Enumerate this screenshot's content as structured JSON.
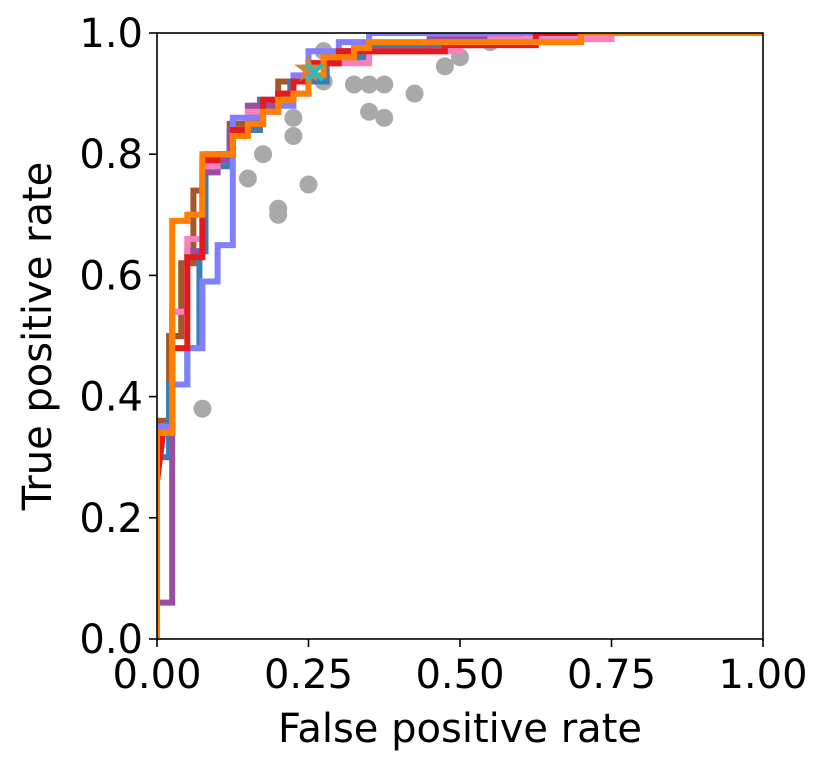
{
  "chart_data": {
    "type": "line",
    "title": "",
    "xlabel": "False positive rate",
    "ylabel": "True positive rate",
    "xlim": [
      0,
      1
    ],
    "ylim": [
      0,
      1
    ],
    "xticks": [
      0,
      0.25,
      0.5,
      0.75,
      1
    ],
    "yticks": [
      0,
      0.2,
      0.4,
      0.6,
      0.8,
      1
    ],
    "xtick_labels": [
      "0.00",
      "0.25",
      "0.50",
      "0.75",
      "1.00"
    ],
    "ytick_labels": [
      "0.0",
      "0.2",
      "0.4",
      "0.6",
      "0.8",
      "1.0"
    ],
    "grid": false,
    "series": [
      {
        "name": "brown-curve",
        "color": "#a65628",
        "points": [
          [
            0,
            0
          ],
          [
            0,
            0.36
          ],
          [
            0.02,
            0.36
          ],
          [
            0.02,
            0.5
          ],
          [
            0.04,
            0.5
          ],
          [
            0.04,
            0.62
          ],
          [
            0.06,
            0.62
          ],
          [
            0.06,
            0.74
          ],
          [
            0.08,
            0.74
          ],
          [
            0.08,
            0.8
          ],
          [
            0.12,
            0.8
          ],
          [
            0.12,
            0.85
          ],
          [
            0.16,
            0.85
          ],
          [
            0.16,
            0.88
          ],
          [
            0.2,
            0.88
          ],
          [
            0.2,
            0.92
          ],
          [
            0.25,
            0.92
          ],
          [
            0.25,
            0.95
          ],
          [
            0.3,
            0.95
          ],
          [
            0.3,
            0.97
          ],
          [
            0.4,
            0.97
          ],
          [
            0.4,
            0.98
          ],
          [
            0.55,
            0.98
          ],
          [
            0.55,
            1
          ],
          [
            1,
            1
          ]
        ]
      },
      {
        "name": "steel-blue-curve",
        "color": "#377eb8",
        "points": [
          [
            0,
            0
          ],
          [
            0,
            0.3
          ],
          [
            0.02,
            0.3
          ],
          [
            0.02,
            0.42
          ],
          [
            0.05,
            0.42
          ],
          [
            0.05,
            0.48
          ],
          [
            0.07,
            0.48
          ],
          [
            0.07,
            0.64
          ],
          [
            0.08,
            0.64
          ],
          [
            0.08,
            0.78
          ],
          [
            0.12,
            0.78
          ],
          [
            0.12,
            0.84
          ],
          [
            0.17,
            0.84
          ],
          [
            0.17,
            0.89
          ],
          [
            0.22,
            0.89
          ],
          [
            0.22,
            0.92
          ],
          [
            0.28,
            0.92
          ],
          [
            0.28,
            0.96
          ],
          [
            0.35,
            0.96
          ],
          [
            0.35,
            0.98
          ],
          [
            0.55,
            0.98
          ],
          [
            0.55,
            1
          ],
          [
            1,
            1
          ]
        ]
      },
      {
        "name": "purple-curve",
        "color": "#984ea3",
        "points": [
          [
            0,
            0
          ],
          [
            0,
            0.06
          ],
          [
            0.025,
            0.06
          ],
          [
            0.025,
            0.54
          ],
          [
            0.05,
            0.54
          ],
          [
            0.05,
            0.64
          ],
          [
            0.075,
            0.64
          ],
          [
            0.075,
            0.77
          ],
          [
            0.1,
            0.77
          ],
          [
            0.1,
            0.79
          ],
          [
            0.12,
            0.79
          ],
          [
            0.12,
            0.84
          ],
          [
            0.15,
            0.84
          ],
          [
            0.15,
            0.88
          ],
          [
            0.2,
            0.88
          ],
          [
            0.2,
            0.9
          ],
          [
            0.25,
            0.9
          ],
          [
            0.25,
            0.95
          ],
          [
            0.3,
            0.95
          ],
          [
            0.3,
            0.97
          ],
          [
            0.45,
            0.97
          ],
          [
            0.45,
            0.99
          ],
          [
            0.6,
            0.99
          ],
          [
            0.6,
            1
          ],
          [
            1,
            1
          ]
        ]
      },
      {
        "name": "pink-curve",
        "color": "#f781bf",
        "points": [
          [
            0,
            0
          ],
          [
            0,
            0.35
          ],
          [
            0.025,
            0.35
          ],
          [
            0.025,
            0.54
          ],
          [
            0.05,
            0.54
          ],
          [
            0.05,
            0.66
          ],
          [
            0.075,
            0.66
          ],
          [
            0.075,
            0.78
          ],
          [
            0.1,
            0.78
          ],
          [
            0.1,
            0.8
          ],
          [
            0.125,
            0.8
          ],
          [
            0.125,
            0.84
          ],
          [
            0.15,
            0.84
          ],
          [
            0.15,
            0.87
          ],
          [
            0.2,
            0.87
          ],
          [
            0.2,
            0.9
          ],
          [
            0.25,
            0.9
          ],
          [
            0.25,
            0.95
          ],
          [
            0.35,
            0.95
          ],
          [
            0.35,
            0.97
          ],
          [
            0.5,
            0.97
          ],
          [
            0.5,
            0.98
          ],
          [
            0.55,
            0.98
          ],
          [
            0.55,
            0.99
          ],
          [
            0.75,
            0.99
          ],
          [
            0.75,
            1
          ],
          [
            1,
            1
          ]
        ]
      },
      {
        "name": "light-blue-curve",
        "color": "#8080ff",
        "points": [
          [
            0,
            0
          ],
          [
            0,
            0.35
          ],
          [
            0.025,
            0.35
          ],
          [
            0.025,
            0.42
          ],
          [
            0.05,
            0.42
          ],
          [
            0.05,
            0.48
          ],
          [
            0.075,
            0.48
          ],
          [
            0.075,
            0.59
          ],
          [
            0.1,
            0.59
          ],
          [
            0.1,
            0.65
          ],
          [
            0.125,
            0.65
          ],
          [
            0.125,
            0.86
          ],
          [
            0.175,
            0.86
          ],
          [
            0.175,
            0.87
          ],
          [
            0.2,
            0.87
          ],
          [
            0.2,
            0.88
          ],
          [
            0.225,
            0.88
          ],
          [
            0.225,
            0.93
          ],
          [
            0.25,
            0.93
          ],
          [
            0.25,
            0.97
          ],
          [
            0.3,
            0.97
          ],
          [
            0.3,
            0.985
          ],
          [
            0.35,
            0.985
          ],
          [
            0.35,
            1
          ],
          [
            1,
            1
          ]
        ]
      },
      {
        "name": "red-curve",
        "color": "#e41a1c",
        "points": [
          [
            0,
            0.26
          ],
          [
            0.01,
            0.34
          ],
          [
            0.025,
            0.34
          ],
          [
            0.025,
            0.48
          ],
          [
            0.05,
            0.48
          ],
          [
            0.05,
            0.63
          ],
          [
            0.075,
            0.63
          ],
          [
            0.075,
            0.79
          ],
          [
            0.1,
            0.79
          ],
          [
            0.1,
            0.8
          ],
          [
            0.125,
            0.8
          ],
          [
            0.125,
            0.84
          ],
          [
            0.15,
            0.84
          ],
          [
            0.15,
            0.85
          ],
          [
            0.175,
            0.85
          ],
          [
            0.175,
            0.89
          ],
          [
            0.2,
            0.89
          ],
          [
            0.2,
            0.9
          ],
          [
            0.225,
            0.9
          ],
          [
            0.225,
            0.92
          ],
          [
            0.25,
            0.92
          ],
          [
            0.25,
            0.95
          ],
          [
            0.3,
            0.95
          ],
          [
            0.3,
            0.97
          ],
          [
            0.475,
            0.97
          ],
          [
            0.475,
            0.98
          ],
          [
            0.625,
            0.98
          ],
          [
            0.625,
            1
          ],
          [
            1,
            1
          ]
        ]
      },
      {
        "name": "orange-curve",
        "color": "#ff7f00",
        "points": [
          [
            0,
            0
          ],
          [
            0,
            0.34
          ],
          [
            0.025,
            0.34
          ],
          [
            0.025,
            0.69
          ],
          [
            0.05,
            0.69
          ],
          [
            0.05,
            0.7
          ],
          [
            0.075,
            0.7
          ],
          [
            0.075,
            0.8
          ],
          [
            0.125,
            0.8
          ],
          [
            0.125,
            0.83
          ],
          [
            0.15,
            0.83
          ],
          [
            0.15,
            0.85
          ],
          [
            0.175,
            0.85
          ],
          [
            0.175,
            0.87
          ],
          [
            0.2,
            0.87
          ],
          [
            0.2,
            0.89
          ],
          [
            0.225,
            0.89
          ],
          [
            0.225,
            0.9
          ],
          [
            0.25,
            0.9
          ],
          [
            0.25,
            0.93
          ],
          [
            0.275,
            0.93
          ],
          [
            0.275,
            0.96
          ],
          [
            0.325,
            0.96
          ],
          [
            0.325,
            0.975
          ],
          [
            0.35,
            0.975
          ],
          [
            0.35,
            0.985
          ],
          [
            0.7,
            0.985
          ],
          [
            0.7,
            1
          ],
          [
            1,
            1
          ]
        ]
      }
    ],
    "scatter": {
      "name": "gray-points",
      "color": "#a9a9a9",
      "points": [
        [
          0.075,
          0.38
        ],
        [
          0.15,
          0.76
        ],
        [
          0.175,
          0.8
        ],
        [
          0.2,
          0.7
        ],
        [
          0.2,
          0.71
        ],
        [
          0.225,
          0.83
        ],
        [
          0.225,
          0.86
        ],
        [
          0.25,
          0.75
        ],
        [
          0.275,
          0.92
        ],
        [
          0.275,
          0.97
        ],
        [
          0.325,
          0.915
        ],
        [
          0.325,
          0.96
        ],
        [
          0.35,
          0.87
        ],
        [
          0.35,
          0.915
        ],
        [
          0.375,
          0.86
        ],
        [
          0.375,
          0.915
        ],
        [
          0.425,
          0.9
        ],
        [
          0.475,
          0.945
        ],
        [
          0.5,
          0.96
        ],
        [
          0.55,
          0.985
        ]
      ]
    },
    "markers": [
      {
        "name": "star-marker",
        "shape": "star",
        "color": "#cd853f",
        "x": 0.25,
        "y": 0.94
      },
      {
        "name": "cross-marker",
        "shape": "x",
        "color": "#20c0c0",
        "x": 0.26,
        "y": 0.935
      }
    ]
  }
}
